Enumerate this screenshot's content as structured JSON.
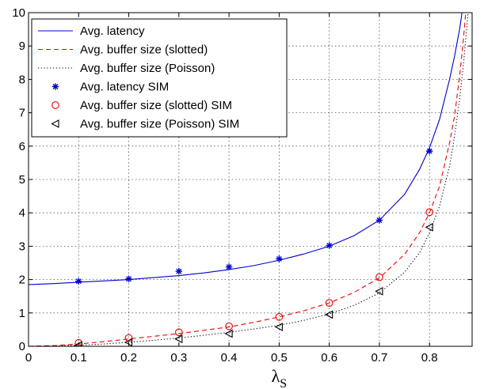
{
  "chart_data": {
    "type": "line",
    "title": "",
    "xlabel": "λ",
    "xlabel_subscript": "S",
    "ylabel": "",
    "xlim": [
      0,
      0.885
    ],
    "ylim": [
      0,
      10
    ],
    "xticks": [
      "0",
      "0.1",
      "0.2",
      "0.3",
      "0.4",
      "0.5",
      "0.6",
      "0.7",
      "0.8"
    ],
    "yticks": [
      "0",
      "1",
      "2",
      "3",
      "4",
      "5",
      "6",
      "7",
      "8",
      "9",
      "10"
    ],
    "grid": true,
    "legend_position": "top-left",
    "series": [
      {
        "name": "Avg. latency",
        "style": "solid-line",
        "color": "#0000cc",
        "x": [
          0.0,
          0.05,
          0.1,
          0.15,
          0.2,
          0.25,
          0.3,
          0.35,
          0.4,
          0.45,
          0.5,
          0.55,
          0.6,
          0.65,
          0.7,
          0.75,
          0.78,
          0.8,
          0.82,
          0.84,
          0.85,
          0.86,
          0.863,
          0.866,
          0.869,
          0.872
        ],
        "y": [
          1.85,
          1.88,
          1.92,
          1.96,
          2.0,
          2.06,
          2.12,
          2.2,
          2.3,
          2.42,
          2.58,
          2.77,
          3.0,
          3.32,
          3.78,
          4.55,
          5.3,
          5.95,
          6.8,
          8.0,
          8.7,
          9.5,
          9.8,
          10.15,
          10.5,
          10.9
        ]
      },
      {
        "name": "Avg. buffer size (slotted)",
        "style": "dashed-line",
        "color": "#ee0000",
        "x": [
          0.0,
          0.05,
          0.1,
          0.15,
          0.2,
          0.25,
          0.3,
          0.35,
          0.4,
          0.45,
          0.5,
          0.55,
          0.6,
          0.65,
          0.7,
          0.75,
          0.78,
          0.8,
          0.82,
          0.84,
          0.85,
          0.86,
          0.865,
          0.87,
          0.875,
          0.878
        ],
        "y": [
          0.0,
          0.02,
          0.07,
          0.14,
          0.22,
          0.3,
          0.38,
          0.48,
          0.58,
          0.72,
          0.88,
          1.07,
          1.3,
          1.62,
          2.05,
          2.75,
          3.4,
          4.0,
          4.8,
          6.1,
          6.9,
          8.1,
          8.8,
          9.6,
          10.5,
          11.0
        ]
      },
      {
        "name": "Avg. buffer size (Poisson)",
        "style": "dotted-line",
        "color": "#000000",
        "x": [
          0.0,
          0.05,
          0.1,
          0.15,
          0.2,
          0.25,
          0.3,
          0.35,
          0.4,
          0.45,
          0.5,
          0.55,
          0.6,
          0.65,
          0.7,
          0.75,
          0.78,
          0.8,
          0.82,
          0.84,
          0.85,
          0.86,
          0.868,
          0.874,
          0.879,
          0.882
        ],
        "y": [
          0.0,
          0.01,
          0.03,
          0.07,
          0.12,
          0.18,
          0.25,
          0.33,
          0.42,
          0.52,
          0.63,
          0.78,
          0.97,
          1.23,
          1.6,
          2.22,
          2.8,
          3.4,
          4.2,
          5.4,
          6.3,
          7.4,
          8.5,
          9.5,
          10.4,
          11.0
        ]
      },
      {
        "name": "Avg. latency SIM",
        "style": "star-markers",
        "color": "#0000cc",
        "x": [
          0.1,
          0.2,
          0.3,
          0.4,
          0.5,
          0.6,
          0.7,
          0.8
        ],
        "y": [
          1.95,
          2.02,
          2.25,
          2.38,
          2.62,
          3.02,
          3.78,
          5.85
        ]
      },
      {
        "name": "Avg. buffer size (slotted) SIM",
        "style": "circle-markers",
        "color": "#ee0000",
        "x": [
          0.1,
          0.2,
          0.3,
          0.4,
          0.5,
          0.6,
          0.7,
          0.8
        ],
        "y": [
          0.1,
          0.25,
          0.42,
          0.6,
          0.88,
          1.3,
          2.07,
          4.02
        ]
      },
      {
        "name": "Avg. buffer size (Poisson) SIM",
        "style": "triangle-left-markers",
        "color": "#000000",
        "x": [
          0.1,
          0.2,
          0.3,
          0.4,
          0.5,
          0.6,
          0.7,
          0.8
        ],
        "y": [
          0.03,
          0.12,
          0.22,
          0.38,
          0.58,
          0.95,
          1.65,
          3.57
        ]
      }
    ]
  }
}
